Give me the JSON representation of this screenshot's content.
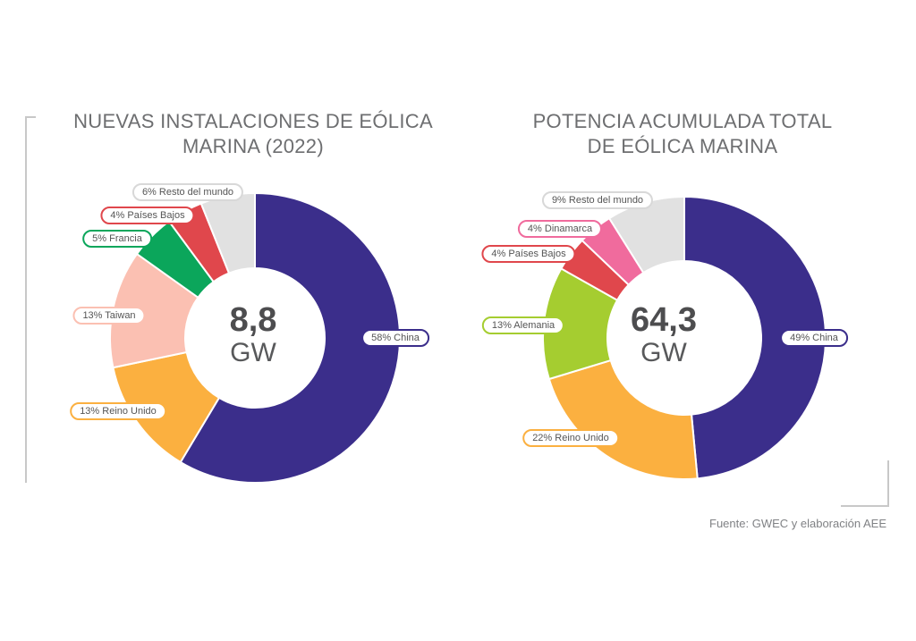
{
  "chart_data": [
    {
      "type": "pie",
      "title": "NUEVAS INSTALACIONES DE EÓLICA MARINA  (2022)",
      "title_lines": [
        "NUEVAS INSTALACIONES DE EÓLICA",
        "MARINA  (2022)"
      ],
      "center_value": "8,8",
      "center_unit": "GW",
      "categories": [
        "China",
        "Reino Unido",
        "Taiwan",
        "Francia",
        "Países Bajos",
        "Resto del mundo"
      ],
      "values": [
        58,
        13,
        13,
        5,
        4,
        6
      ],
      "labels": [
        "58% China",
        "13% Reino Unido",
        "13% Taiwan",
        "5% Francia",
        "4% Países Bajos",
        "6% Resto del mundo"
      ],
      "colors": [
        "#3b2e8b",
        "#fbb040",
        "#fbc0b2",
        "#0ba65b",
        "#e0474c",
        "#e1e1e1"
      ]
    },
    {
      "type": "pie",
      "title": "POTENCIA ACUMULADA TOTAL DE EÓLICA MARINA",
      "title_lines": [
        "POTENCIA ACUMULADA TOTAL",
        "DE EÓLICA MARINA"
      ],
      "center_value": "64,3",
      "center_unit": "GW",
      "categories": [
        "China",
        "Reino Unido",
        "Alemania",
        "Países Bajos",
        "Dinamarca",
        "Resto del mundo"
      ],
      "values": [
        49,
        22,
        13,
        4,
        4,
        9
      ],
      "labels": [
        "49% China",
        "22% Reino Unido",
        "13% Alemania",
        "4% Países Bajos",
        "4% Dinamarca",
        "9% Resto del mundo"
      ],
      "colors": [
        "#3b2e8b",
        "#fbb040",
        "#a5cd30",
        "#e0474c",
        "#f06b9d",
        "#e1e1e1"
      ]
    }
  ],
  "source": "Fuente: GWEC y elaboración AEE"
}
